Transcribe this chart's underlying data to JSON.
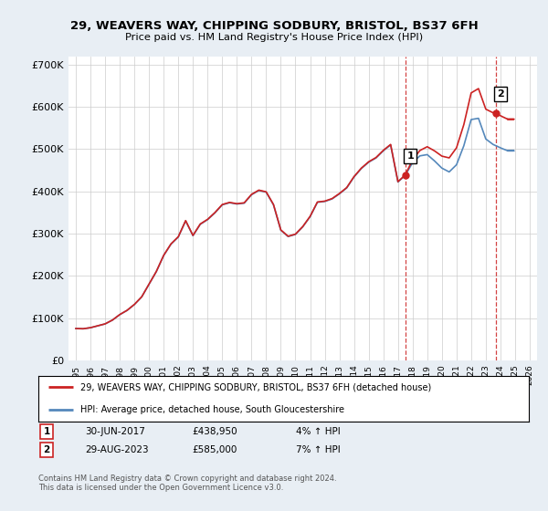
{
  "title": "29, WEAVERS WAY, CHIPPING SODBURY, BRISTOL, BS37 6FH",
  "subtitle": "Price paid vs. HM Land Registry's House Price Index (HPI)",
  "ylim": [
    0,
    720000
  ],
  "yticks": [
    0,
    100000,
    200000,
    300000,
    400000,
    500000,
    600000,
    700000
  ],
  "ytick_labels": [
    "£0",
    "£100K",
    "£200K",
    "£300K",
    "£400K",
    "£500K",
    "£600K",
    "£700K"
  ],
  "xlim_start": 1994.5,
  "xlim_end": 2026.5,
  "grid_color": "#cccccc",
  "background_color": "#e8eef4",
  "plot_bg_color": "#ffffff",
  "hpi_color": "#5588bb",
  "price_color": "#cc2222",
  "dashed_color": "#cc2222",
  "marker1_x": 2017.5,
  "marker1_y": 438950,
  "marker1_label": "1",
  "marker2_x": 2023.67,
  "marker2_y": 585000,
  "marker2_label": "2",
  "annotation1_date": "30-JUN-2017",
  "annotation1_price": "£438,950",
  "annotation1_hpi": "4% ↑ HPI",
  "annotation2_date": "29-AUG-2023",
  "annotation2_price": "£585,000",
  "annotation2_hpi": "7% ↑ HPI",
  "legend_line1": "29, WEAVERS WAY, CHIPPING SODBURY, BRISTOL, BS37 6FH (detached house)",
  "legend_line2": "HPI: Average price, detached house, South Gloucestershire",
  "footnote": "Contains HM Land Registry data © Crown copyright and database right 2024.\nThis data is licensed under the Open Government Licence v3.0."
}
